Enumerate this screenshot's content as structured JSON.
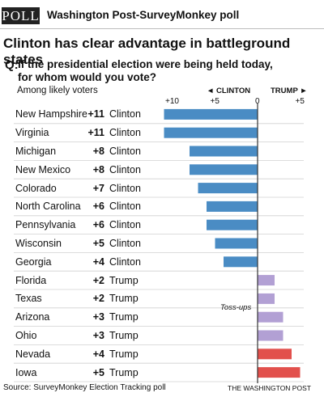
{
  "header": {
    "badge": "POLL",
    "poll_name": "Washington Post-SurveyMonkey poll"
  },
  "headline": "Clinton has clear advantage in battleground states",
  "question": {
    "marker": "Q:",
    "line1": "If the presidential election were being held today,",
    "line2": "for whom would you vote?"
  },
  "footer": {
    "source": "Source: SurveyMonkey Election Tracking poll",
    "credit": "THE WASHINGTON POST"
  },
  "colors": {
    "clinton": "#4a8cc4",
    "trump_tossup": "#b2a0d4",
    "trump": "#e2504c",
    "axis": "#333333",
    "row_rule": "#d0d0d0"
  },
  "chart_data": {
    "type": "bar",
    "orientation": "horizontal",
    "subtitle": "Among likely voters",
    "clinton_label": "◄ CLINTON",
    "trump_label": "TRUMP ►",
    "xlim": [
      -11,
      5
    ],
    "ticks": [
      {
        "value": -10,
        "label": "+10"
      },
      {
        "value": -5,
        "label": "+5"
      },
      {
        "value": 0,
        "label": "0"
      },
      {
        "value": 5,
        "label": "+5"
      }
    ],
    "annotation": "Toss-ups",
    "rows": [
      {
        "state": "New Hampshire",
        "margin": "+11",
        "leader": "Clinton",
        "value": -11,
        "color": "#4a8cc4"
      },
      {
        "state": "Virginia",
        "margin": "+11",
        "leader": "Clinton",
        "value": -11,
        "color": "#4a8cc4"
      },
      {
        "state": "Michigan",
        "margin": "+8",
        "leader": "Clinton",
        "value": -8,
        "color": "#4a8cc4"
      },
      {
        "state": "New Mexico",
        "margin": "+8",
        "leader": "Clinton",
        "value": -8,
        "color": "#4a8cc4"
      },
      {
        "state": "Colorado",
        "margin": "+7",
        "leader": "Clinton",
        "value": -7,
        "color": "#4a8cc4"
      },
      {
        "state": "North Carolina",
        "margin": "+6",
        "leader": "Clinton",
        "value": -6,
        "color": "#4a8cc4"
      },
      {
        "state": "Pennsylvania",
        "margin": "+6",
        "leader": "Clinton",
        "value": -6,
        "color": "#4a8cc4"
      },
      {
        "state": "Wisconsin",
        "margin": "+5",
        "leader": "Clinton",
        "value": -5,
        "color": "#4a8cc4"
      },
      {
        "state": "Georgia",
        "margin": "+4",
        "leader": "Clinton",
        "value": -4,
        "color": "#4a8cc4"
      },
      {
        "state": "Florida",
        "margin": "+2",
        "leader": "Trump",
        "value": 2,
        "color": "#b2a0d4"
      },
      {
        "state": "Texas",
        "margin": "+2",
        "leader": "Trump",
        "value": 2,
        "color": "#b2a0d4"
      },
      {
        "state": "Arizona",
        "margin": "+3",
        "leader": "Trump",
        "value": 3,
        "color": "#b2a0d4"
      },
      {
        "state": "Ohio",
        "margin": "+3",
        "leader": "Trump",
        "value": 3,
        "color": "#b2a0d4"
      },
      {
        "state": "Nevada",
        "margin": "+4",
        "leader": "Trump",
        "value": 4,
        "color": "#e2504c"
      },
      {
        "state": "Iowa",
        "margin": "+5",
        "leader": "Trump",
        "value": 5,
        "color": "#e2504c"
      }
    ]
  }
}
